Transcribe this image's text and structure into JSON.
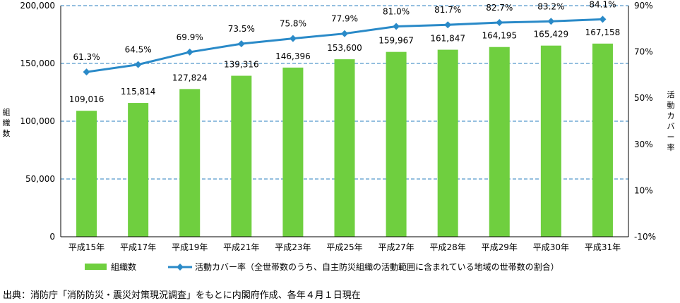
{
  "chart_data": {
    "type": "bar+line",
    "categories": [
      "平成15年",
      "平成17年",
      "平成19年",
      "平成21年",
      "平成23年",
      "平成25年",
      "平成27年",
      "平成28年",
      "平成29年",
      "平成30年",
      "平成31年"
    ],
    "series": [
      {
        "name": "組織数",
        "type": "bar",
        "axis": "left",
        "color": "#6fcf3f",
        "values": [
          109016,
          115814,
          127824,
          139316,
          146396,
          153600,
          159967,
          161847,
          164195,
          165429,
          167158
        ],
        "labels": [
          "109,016",
          "115,814",
          "127,824",
          "139,316",
          "146,396",
          "153,600",
          "159,967",
          "161,847",
          "164,195",
          "165,429",
          "167,158"
        ]
      },
      {
        "name": "活動カバー率（全世帯数のうち、自主防災組織の活動範囲に含まれている地域の世帯数の割合）",
        "type": "line",
        "axis": "right",
        "color": "#2a8ac8",
        "values": [
          61.3,
          64.5,
          69.9,
          73.5,
          75.8,
          77.9,
          81.0,
          81.7,
          82.7,
          83.2,
          84.1
        ],
        "labels": [
          "61.3%",
          "64.5%",
          "69.9%",
          "73.5%",
          "75.8%",
          "77.9%",
          "81.0%",
          "81.7%",
          "82.7%",
          "83.2%",
          "84.1%"
        ]
      }
    ],
    "left_axis": {
      "label": "組織数",
      "min": 0,
      "max": 200000,
      "ticks": [
        0,
        50000,
        100000,
        150000,
        200000
      ],
      "tick_labels": [
        "0",
        "50,000",
        "100,000",
        "150,000",
        "200,000"
      ]
    },
    "right_axis": {
      "label": "活動カバー率",
      "min": -10,
      "max": 90,
      "ticks": [
        -10,
        10,
        30,
        50,
        70,
        90
      ],
      "tick_labels": [
        "-10%",
        "10%",
        "30%",
        "50%",
        "70%",
        "90%"
      ]
    },
    "grid": "horizontal-dashed",
    "legend_position": "bottom"
  },
  "source_note": "出典：消防庁「消防防災・震災対策現況調査」をもとに内閣府作成、各年４月１日現在"
}
